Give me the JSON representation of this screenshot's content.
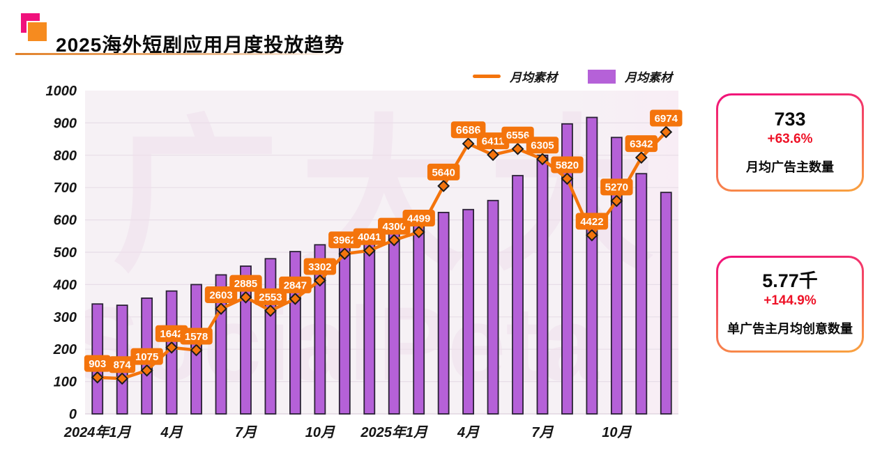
{
  "header": {
    "title": "2025海外短剧应用月度投放趋势"
  },
  "legend": [
    {
      "label": "月均素材",
      "type": "line"
    },
    {
      "label": "月均素材",
      "type": "bar"
    }
  ],
  "cards": [
    {
      "value": "733",
      "change": "+63.6%",
      "label": "月均广告主数量"
    },
    {
      "value": "5.77千",
      "change": "+144.9%",
      "label": "单广告主月均创意数量"
    }
  ],
  "watermark": {
    "line1": "广大大",
    "line2": "SocialPeta"
  },
  "colors": {
    "accent_orange": "#f4740c",
    "bar_purple": "#b561d8",
    "bar_outline": "#2a2135",
    "brand_pink": "#f0117c",
    "brand_orange": "#f68b1f",
    "change_red": "#ee1227",
    "plot_bg": "#f6f1f5",
    "plot_bg_right": "#f8edf5",
    "gridline": "#e7dde7",
    "axis_text": "#151515",
    "label_text": "#ffffff",
    "watermark_tint": "#efdfec"
  },
  "chart_data": {
    "type": "combo",
    "title": "2025海外短剧应用月度投放趋势",
    "n_points": 24,
    "x_tick_labels": [
      "2024年1月",
      "4月",
      "7月",
      "10月",
      "2025年1月",
      "4月",
      "7月",
      "10月"
    ],
    "x_tick_every": 3,
    "left_axis": {
      "min": 0,
      "max": 1000,
      "step": 100
    },
    "right_axis_hidden": {
      "min": 0,
      "max": 8000
    },
    "grid": "horizontal",
    "legend_position": "top-right",
    "series": [
      {
        "name": "月均素材",
        "type": "bar",
        "axis": "left",
        "values": [
          340,
          336,
          358,
          380,
          400,
          430,
          457,
          480,
          502,
          523,
          545,
          558,
          572,
          590,
          623,
          632,
          660,
          737,
          800,
          897,
          917,
          855,
          743,
          685
        ]
      },
      {
        "name": "月均素材",
        "type": "line",
        "axis": "right",
        "marker": "diamond",
        "data_labels": true,
        "bold_label_value": 6686,
        "values": [
          903,
          874,
          1075,
          1642,
          1578,
          2603,
          2885,
          2553,
          2847,
          3302,
          3962,
          4041,
          4300,
          4499,
          5640,
          6686,
          6411,
          6556,
          6305,
          5820,
          4422,
          5270,
          6342,
          6974
        ]
      }
    ]
  }
}
